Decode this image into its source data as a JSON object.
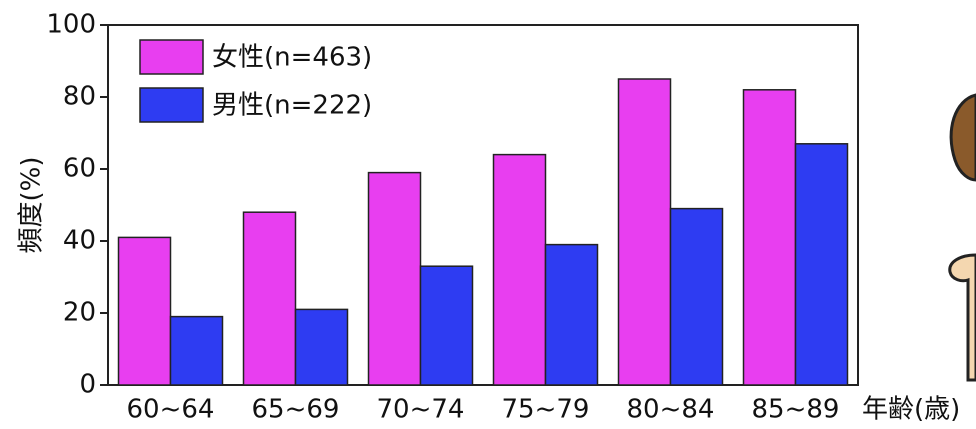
{
  "chart_data": {
    "type": "bar",
    "x_label": "年齢(歳)",
    "y_label": "頻度(%)",
    "categories": [
      "60~64",
      "65~69",
      "70~74",
      "75~79",
      "80~84",
      "85~89"
    ],
    "series": [
      {
        "name": "女性(n=463)",
        "color": "#e83ef0",
        "values": [
          41,
          48,
          59,
          64,
          85,
          82
        ]
      },
      {
        "name": "男性(n=222)",
        "color": "#2e3cf2",
        "values": [
          19,
          21,
          33,
          39,
          49,
          67
        ]
      }
    ],
    "ylim": [
      0,
      100
    ],
    "yticks": [
      0,
      20,
      40,
      60,
      80,
      100
    ],
    "legend": "upper left"
  }
}
